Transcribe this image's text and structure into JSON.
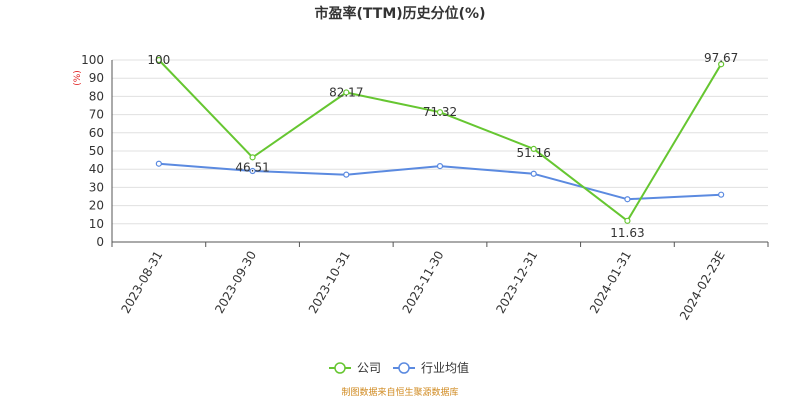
{
  "chart_data": {
    "type": "line",
    "title": "市盈率(TTM)历史分位(%)",
    "unit_label": "(%)",
    "categories": [
      "2023-08-31",
      "2023-09-30",
      "2023-10-31",
      "2023-11-30",
      "2023-12-31",
      "2024-01-31",
      "2024-02-23E"
    ],
    "ylim": [
      0,
      100
    ],
    "yticks": [
      0,
      10,
      20,
      30,
      40,
      50,
      60,
      70,
      80,
      90,
      100
    ],
    "grid": true,
    "legend_position": "bottom-center",
    "series": [
      {
        "name": "公司",
        "color": "#66c631",
        "values": [
          100,
          46.51,
          82.17,
          71.32,
          51.16,
          11.63,
          97.67
        ],
        "labels": [
          "100",
          "46.51",
          "82.17",
          "71.32",
          "51.16",
          "11.63",
          "97.67"
        ]
      },
      {
        "name": "行业均值",
        "color": "#5b8ae0",
        "values": [
          43,
          39,
          37,
          41.7,
          37.5,
          23.5,
          26
        ]
      }
    ],
    "source": "制图数据来自恒生聚源数据库"
  }
}
